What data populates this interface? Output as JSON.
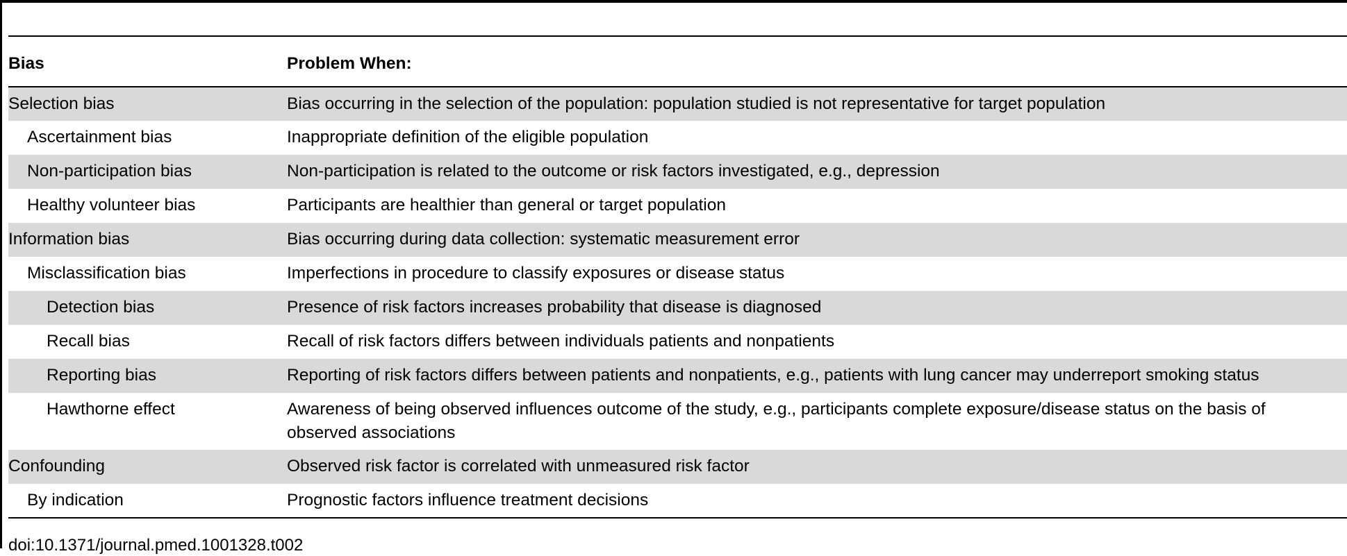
{
  "table": {
    "headers": {
      "bias": "Bias",
      "problem": "Problem When:"
    },
    "rows": [
      {
        "bias": "Selection bias",
        "problem": "Bias occurring in the selection of the population: population studied is not representative for target population"
      },
      {
        "bias": "Ascertainment bias",
        "problem": "Inappropriate definition of the eligible population"
      },
      {
        "bias": "Non-participation bias",
        "problem": "Non-participation is related to the outcome or risk factors investigated, e.g., depression"
      },
      {
        "bias": "Healthy volunteer bias",
        "problem": "Participants are healthier than general or target population"
      },
      {
        "bias": "Information bias",
        "problem": "Bias occurring during data collection: systematic measurement error"
      },
      {
        "bias": "Misclassification bias",
        "problem": "Imperfections in procedure to classify exposures or disease status"
      },
      {
        "bias": "Detection bias",
        "problem": "Presence of risk factors increases probability that disease is diagnosed"
      },
      {
        "bias": "Recall bias",
        "problem": "Recall of risk factors differs between individuals patients and nonpatients"
      },
      {
        "bias": "Reporting bias",
        "problem": "Reporting of risk factors differs between patients and nonpatients, e.g., patients with lung cancer may underreport smoking status"
      },
      {
        "bias": "Hawthorne effect",
        "problem": "Awareness of being observed influences outcome of the study, e.g., participants complete exposure/disease status on the basis of observed associations"
      },
      {
        "bias": "Confounding",
        "problem": "Observed risk factor is correlated with unmeasured risk factor"
      },
      {
        "bias": "By indication",
        "problem": "Prognostic factors influence treatment decisions"
      }
    ]
  },
  "footer": {
    "doi": "doi:10.1371/journal.pmed.1001328.t002"
  },
  "colors": {
    "shaded_row": "#d9d9d9",
    "rule": "#000000"
  }
}
